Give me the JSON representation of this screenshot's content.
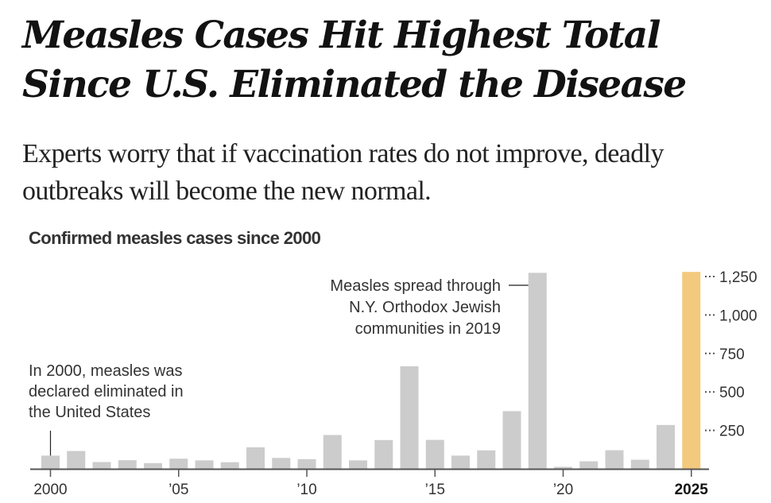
{
  "article": {
    "headline": "Measles Cases Hit Highest Total Since U.S. Eliminated the Disease",
    "dek": "Experts worry that if vaccination rates do not improve, deadly outbreaks will become the new normal."
  },
  "colors": {
    "bar": "#cccccc",
    "highlight": "#f3c97e",
    "axis": "#555555",
    "text": "#333333"
  },
  "chart_data": {
    "type": "bar",
    "title": "Confirmed measles cases since 2000",
    "xlabel": "",
    "ylabel": "",
    "ylim": [
      0,
      1300
    ],
    "grid": false,
    "y_axis_side": "right",
    "y_ticks": [
      250,
      500,
      750,
      1000,
      1250
    ],
    "y_tick_labels": [
      "250",
      "500",
      "750",
      "1,000",
      "1,250"
    ],
    "x_ticks": [
      {
        "year": 2000,
        "label": "2000",
        "bold": false
      },
      {
        "year": 2005,
        "label": "’05",
        "bold": false
      },
      {
        "year": 2010,
        "label": "’10",
        "bold": false
      },
      {
        "year": 2015,
        "label": "’15",
        "bold": false
      },
      {
        "year": 2020,
        "label": "’20",
        "bold": false
      },
      {
        "year": 2025,
        "label": "2025",
        "bold": true
      }
    ],
    "categories": [
      2000,
      2001,
      2002,
      2003,
      2004,
      2005,
      2006,
      2007,
      2008,
      2009,
      2010,
      2011,
      2012,
      2013,
      2014,
      2015,
      2016,
      2017,
      2018,
      2019,
      2020,
      2021,
      2022,
      2023,
      2024,
      2025
    ],
    "values": [
      86,
      116,
      44,
      56,
      37,
      66,
      55,
      43,
      140,
      71,
      63,
      220,
      55,
      187,
      667,
      188,
      86,
      120,
      375,
      1274,
      13,
      49,
      121,
      59,
      285,
      1280
    ],
    "highlight": [
      2025
    ],
    "annotations": [
      {
        "year": 2000,
        "lines": [
          "In 2000, measles was",
          "declared eliminated in",
          "the United States"
        ],
        "anchor": "start"
      },
      {
        "year": 2019,
        "lines": [
          "Measles spread through",
          "N.Y. Orthodox Jewish",
          "communities in 2019"
        ],
        "anchor": "end"
      }
    ]
  }
}
